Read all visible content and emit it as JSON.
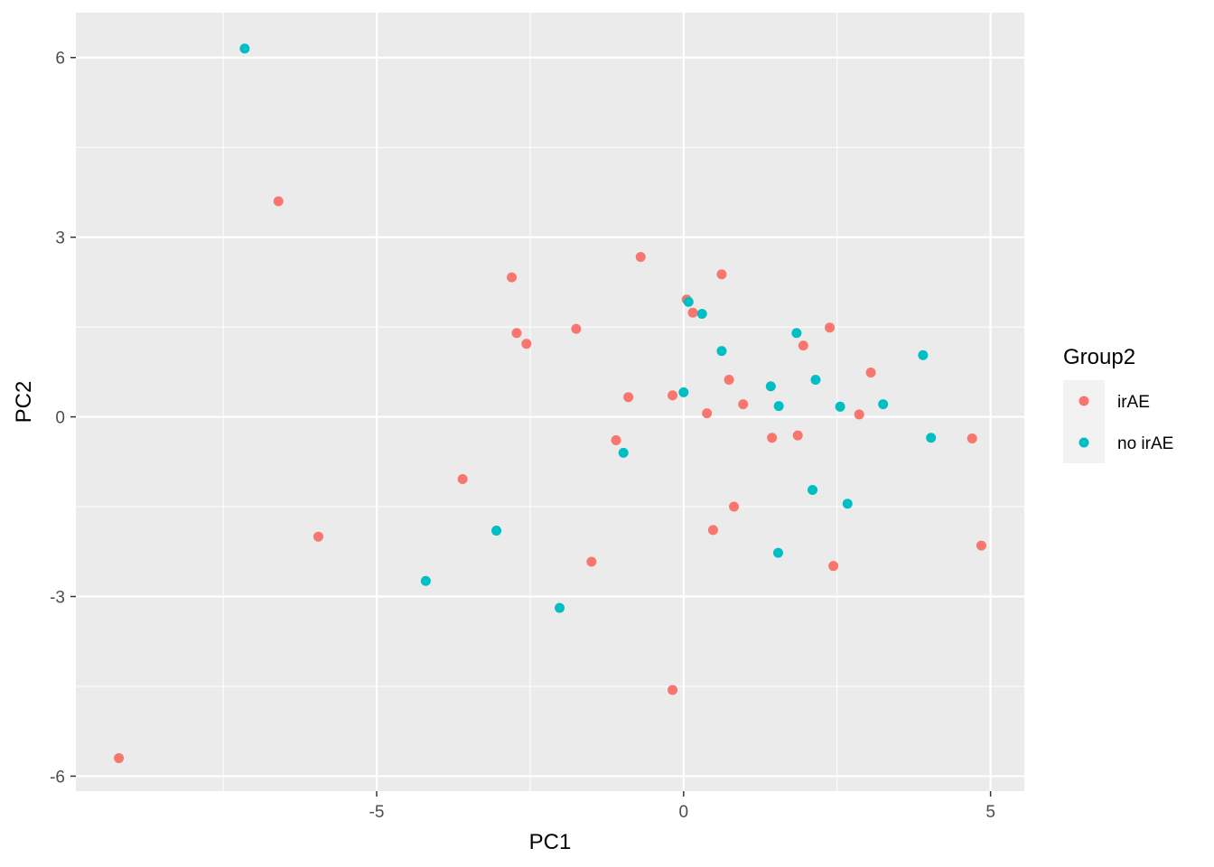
{
  "chart_data": {
    "type": "scatter",
    "title": "",
    "xlabel": "PC1",
    "ylabel": "PC2",
    "xlim": [
      -9.9,
      5.55
    ],
    "ylim": [
      -6.25,
      6.75
    ],
    "x_ticks": [
      -5,
      0,
      5
    ],
    "x_tick_labels": [
      "-5",
      "0",
      "5"
    ],
    "y_ticks": [
      -6,
      -3,
      0,
      3,
      6
    ],
    "y_tick_labels": [
      "-6",
      "-3",
      "0",
      "3",
      "6"
    ],
    "grid": true,
    "legend": {
      "title": "Group2",
      "placement": "right"
    },
    "series": [
      {
        "name": "irAE",
        "color": "#F8766D",
        "points": [
          [
            -9.2,
            -5.7
          ],
          [
            -6.6,
            3.6
          ],
          [
            -5.95,
            -2.0
          ],
          [
            -3.6,
            -1.04
          ],
          [
            -2.8,
            2.33
          ],
          [
            -2.72,
            1.4
          ],
          [
            -2.56,
            1.22
          ],
          [
            -1.75,
            1.47
          ],
          [
            -1.5,
            -2.42
          ],
          [
            -1.1,
            -0.39
          ],
          [
            -0.9,
            0.33
          ],
          [
            -0.7,
            2.67
          ],
          [
            -0.18,
            0.36
          ],
          [
            -0.18,
            -4.56
          ],
          [
            0.05,
            1.96
          ],
          [
            0.15,
            1.74
          ],
          [
            0.38,
            0.06
          ],
          [
            0.48,
            -1.89
          ],
          [
            0.62,
            2.38
          ],
          [
            0.74,
            0.62
          ],
          [
            0.82,
            -1.5
          ],
          [
            0.97,
            0.21
          ],
          [
            1.44,
            -0.35
          ],
          [
            1.86,
            -0.31
          ],
          [
            1.95,
            1.19
          ],
          [
            2.38,
            1.49
          ],
          [
            2.44,
            -2.49
          ],
          [
            2.86,
            0.04
          ],
          [
            3.05,
            0.74
          ],
          [
            4.7,
            -0.36
          ],
          [
            4.85,
            -2.15
          ]
        ]
      },
      {
        "name": "no irAE",
        "color": "#00BFC4",
        "points": [
          [
            -7.15,
            6.15
          ],
          [
            -4.2,
            -2.74
          ],
          [
            -3.05,
            -1.9
          ],
          [
            -2.02,
            -3.19
          ],
          [
            -0.98,
            -0.6
          ],
          [
            0.0,
            0.41
          ],
          [
            0.08,
            1.92
          ],
          [
            0.3,
            1.72
          ],
          [
            0.62,
            1.1
          ],
          [
            1.42,
            0.51
          ],
          [
            1.55,
            0.18
          ],
          [
            1.54,
            -2.27
          ],
          [
            1.84,
            1.4
          ],
          [
            2.1,
            -1.22
          ],
          [
            2.15,
            0.62
          ],
          [
            2.55,
            0.17
          ],
          [
            2.67,
            -1.45
          ],
          [
            3.25,
            0.21
          ],
          [
            3.9,
            1.03
          ],
          [
            4.03,
            -0.35
          ]
        ]
      }
    ]
  }
}
